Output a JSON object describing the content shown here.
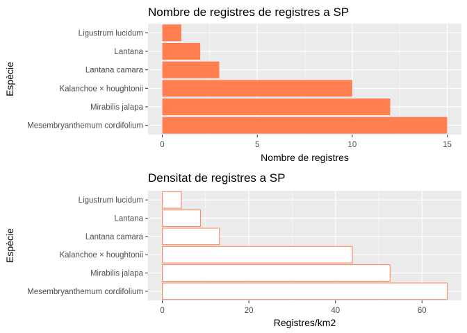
{
  "chart_data": [
    {
      "type": "bar",
      "orientation": "horizontal",
      "title": "Nombre de registres de registres a SP",
      "xlabel": "Nombre de registres",
      "ylabel": "Espècie",
      "categories": [
        "Ligustrum lucidum",
        "Lantana",
        "Lantana camara",
        "Kalanchoe × houghtonii",
        "Mirabilis jalapa",
        "Mesembryanthemum cordifolium"
      ],
      "values": [
        1,
        2,
        3,
        10,
        12,
        15
      ],
      "xlim": [
        -0.75,
        15.75
      ],
      "xticks": [
        0,
        5,
        10,
        15
      ],
      "xtick_labels": [
        "0",
        "5",
        "10",
        "15"
      ],
      "bar_fill": "#FF7F50",
      "bar_stroke": "none",
      "grid": true,
      "panel_background": "#EBEBEB"
    },
    {
      "type": "bar",
      "orientation": "horizontal",
      "title": "Densitat de registres a SP",
      "xlabel": "Registres/km2",
      "ylabel": "Espècie",
      "categories": [
        "Ligustrum lucidum",
        "Lantana",
        "Lantana camara",
        "Kalanchoe × houghtonii",
        "Mirabilis jalapa",
        "Mesembryanthemum cordifolium"
      ],
      "values": [
        4.4,
        8.8,
        13.2,
        43.9,
        52.6,
        65.8
      ],
      "xlim": [
        -3.3,
        69.1
      ],
      "xticks": [
        0,
        20,
        40,
        60
      ],
      "xtick_labels": [
        "0",
        "20",
        "40",
        "60"
      ],
      "bar_fill": "#FFFFFF",
      "bar_stroke": "#FF7F50",
      "grid": true,
      "panel_background": "#EBEBEB"
    }
  ]
}
